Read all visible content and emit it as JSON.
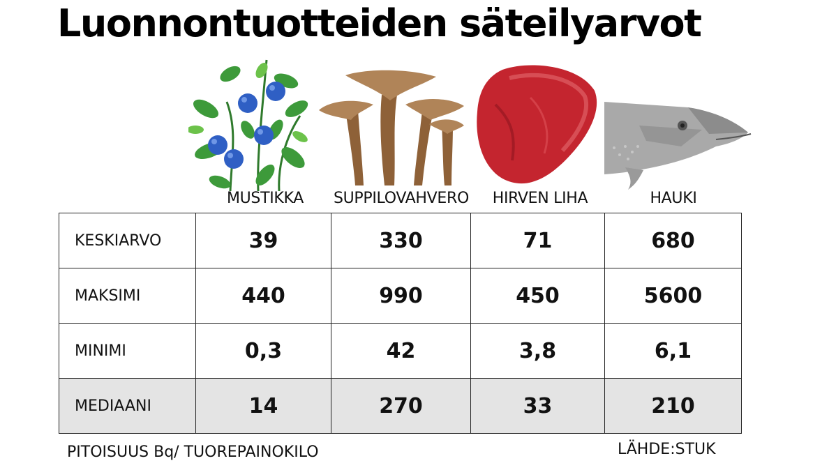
{
  "title": "Luonnontuotteiden säteilyarvot",
  "footnote": "PITOISUUS Bq/ TUOREPAINOKILO",
  "source": "LÄHDE:STUK",
  "icons": [
    "blueberry-illustration",
    "funnel-chanterelle-illustration",
    "elk-meat-illustration",
    "pike-illustration"
  ],
  "colors": {
    "blueberry": "#2f5fc4",
    "leaf": "#3d9a3a",
    "mushroom": "#9b6b3c",
    "meat": "#c4252f",
    "fish": "#a9a9a9",
    "shaded_row": "#e4e4e4"
  },
  "chart_data": {
    "type": "table",
    "title": "Luonnontuotteiden säteilyarvot",
    "columns": [
      "MUSTIKKA",
      "SUPPILOVAHVERO",
      "HIRVEN LIHA",
      "HAUKI"
    ],
    "rows": [
      {
        "label": "KESKIARVO",
        "values": [
          "39",
          "330",
          "71",
          "680"
        ]
      },
      {
        "label": "MAKSIMI",
        "values": [
          "440",
          "990",
          "450",
          "5600"
        ]
      },
      {
        "label": "MINIMI",
        "values": [
          "0,3",
          "42",
          "3,8",
          "6,1"
        ]
      },
      {
        "label": "MEDIAANI",
        "values": [
          "14",
          "270",
          "33",
          "210"
        ]
      }
    ],
    "unit": "PITOISUUS Bq/ TUOREPAINOKILO",
    "source": "LÄHDE:STUK"
  }
}
